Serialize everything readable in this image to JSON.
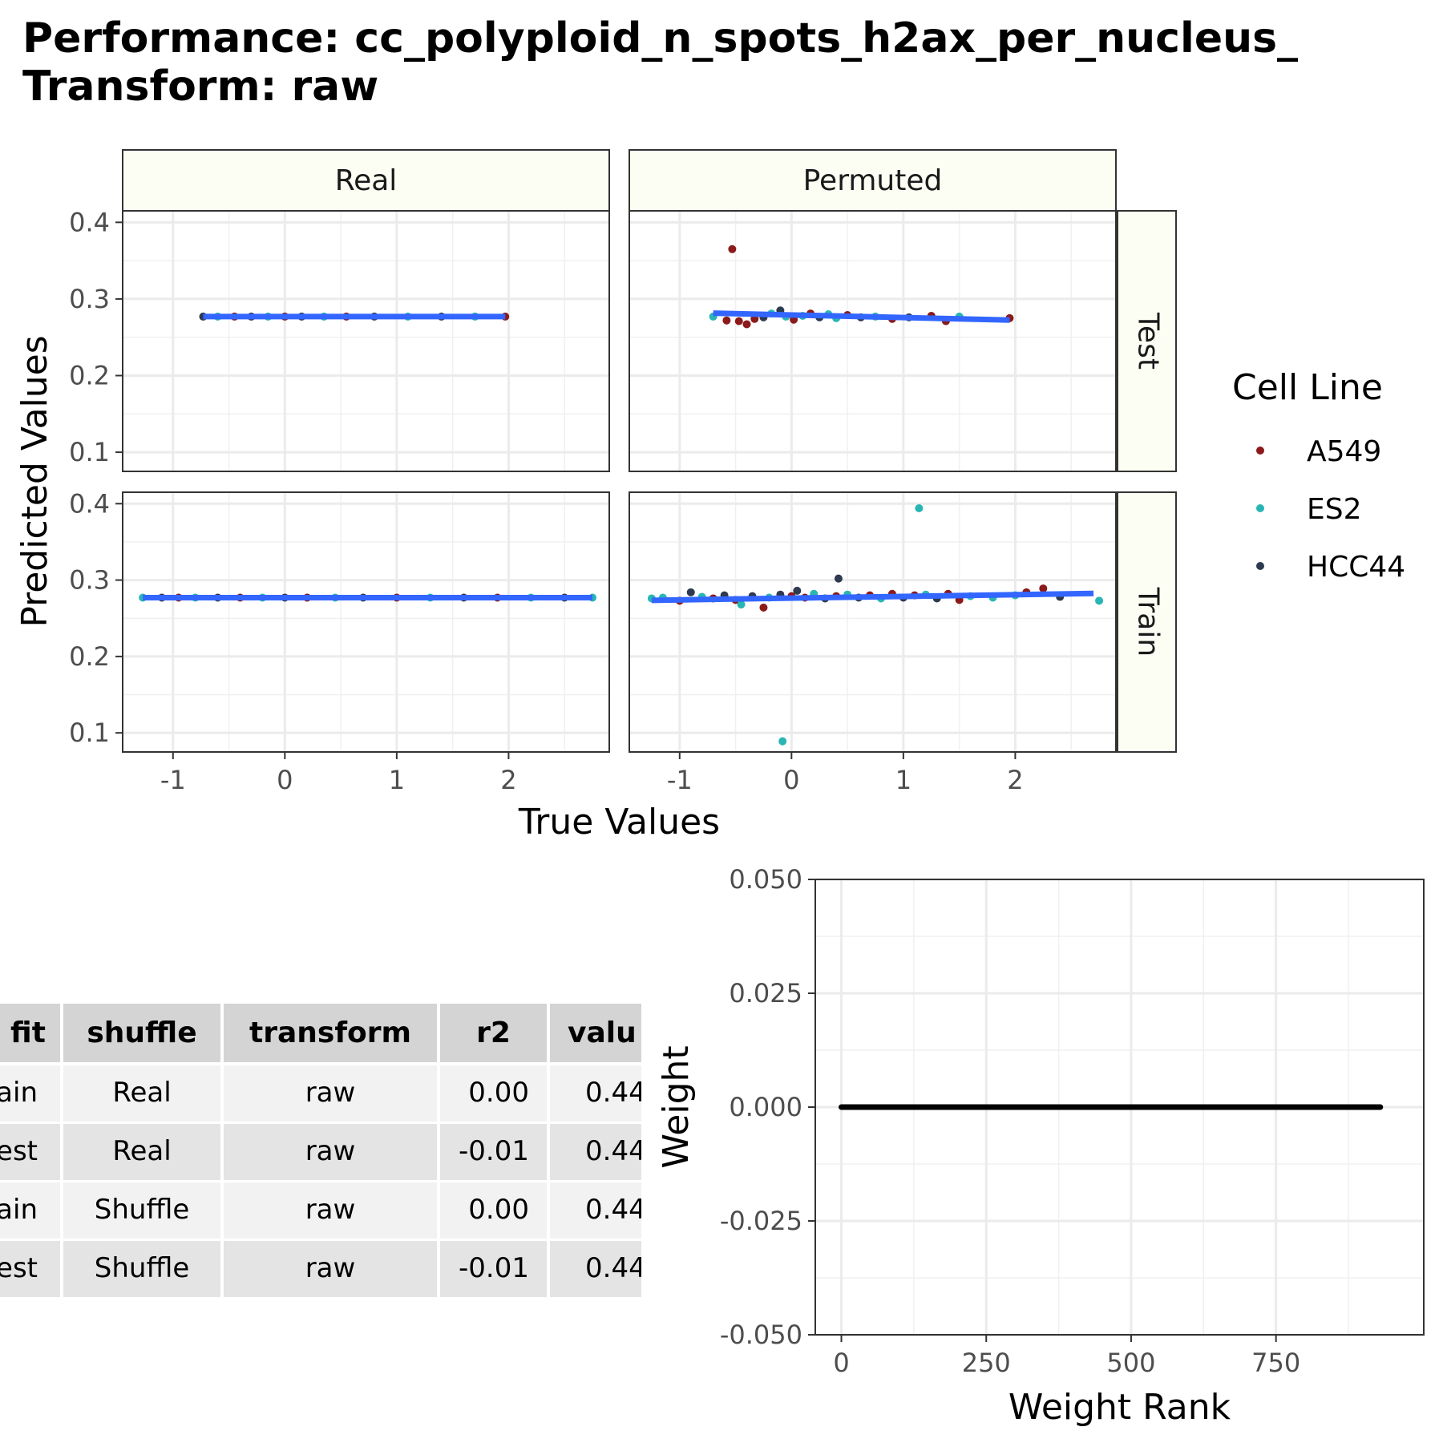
{
  "title": "Performance: cc_polyploid_n_spots_h2ax_per_nucleus_\nTransform: raw",
  "colors": {
    "A549": "#8b1a1a",
    "ES2": "#2ab5b5",
    "HCC44": "#2d3a4f",
    "fit_line": "#3366ff",
    "strip_fill": "#fcfdf3"
  },
  "chart_data": [
    {
      "type": "scatter",
      "facets": {
        "columns": [
          "Real",
          "Permuted"
        ],
        "rows": [
          "Test",
          "Train"
        ]
      },
      "xlabel": "True Values",
      "ylabel": "Predicted Values",
      "xlim": [
        -1.45,
        2.9
      ],
      "ylim": [
        0.075,
        0.415
      ],
      "xticks": [
        -1,
        0,
        1,
        2
      ],
      "xtick_labels": [
        "-1",
        "0",
        "1",
        "2"
      ],
      "yticks": [
        0.1,
        0.2,
        0.3,
        0.4
      ],
      "ytick_labels": [
        "0.1",
        "0.2",
        "0.3",
        "0.4"
      ],
      "legend": {
        "title": "Cell Line",
        "entries": [
          "A549",
          "ES2",
          "HCC44"
        ],
        "position": "right"
      },
      "grid": true,
      "panels": [
        {
          "row": "Test",
          "col": "Real",
          "fit": {
            "x0": -0.73,
            "y0": 0.277,
            "x1": 1.97,
            "y1": 0.277
          },
          "points": [
            {
              "x": -0.73,
              "y": 0.277,
              "g": "HCC44"
            },
            {
              "x": -0.6,
              "y": 0.277,
              "g": "ES2"
            },
            {
              "x": -0.45,
              "y": 0.277,
              "g": "A549"
            },
            {
              "x": -0.3,
              "y": 0.277,
              "g": "HCC44"
            },
            {
              "x": -0.15,
              "y": 0.277,
              "g": "ES2"
            },
            {
              "x": 0.0,
              "y": 0.277,
              "g": "A549"
            },
            {
              "x": 0.15,
              "y": 0.277,
              "g": "HCC44"
            },
            {
              "x": 0.35,
              "y": 0.277,
              "g": "ES2"
            },
            {
              "x": 0.55,
              "y": 0.277,
              "g": "A549"
            },
            {
              "x": 0.8,
              "y": 0.277,
              "g": "HCC44"
            },
            {
              "x": 1.1,
              "y": 0.277,
              "g": "ES2"
            },
            {
              "x": 1.4,
              "y": 0.277,
              "g": "HCC44"
            },
            {
              "x": 1.7,
              "y": 0.277,
              "g": "ES2"
            },
            {
              "x": 1.97,
              "y": 0.277,
              "g": "A549"
            }
          ]
        },
        {
          "row": "Test",
          "col": "Permuted",
          "fit": {
            "x0": -0.7,
            "y0": 0.2815,
            "x1": 1.95,
            "y1": 0.2725
          },
          "points": [
            {
              "x": -0.53,
              "y": 0.365,
              "g": "A549"
            },
            {
              "x": -0.7,
              "y": 0.277,
              "g": "ES2"
            },
            {
              "x": -0.58,
              "y": 0.272,
              "g": "A549"
            },
            {
              "x": -0.47,
              "y": 0.271,
              "g": "A549"
            },
            {
              "x": -0.4,
              "y": 0.267,
              "g": "A549"
            },
            {
              "x": -0.33,
              "y": 0.274,
              "g": "A549"
            },
            {
              "x": -0.25,
              "y": 0.276,
              "g": "HCC44"
            },
            {
              "x": -0.18,
              "y": 0.281,
              "g": "ES2"
            },
            {
              "x": -0.1,
              "y": 0.285,
              "g": "HCC44"
            },
            {
              "x": -0.05,
              "y": 0.277,
              "g": "ES2"
            },
            {
              "x": 0.02,
              "y": 0.273,
              "g": "A549"
            },
            {
              "x": 0.1,
              "y": 0.278,
              "g": "ES2"
            },
            {
              "x": 0.17,
              "y": 0.281,
              "g": "A549"
            },
            {
              "x": 0.25,
              "y": 0.276,
              "g": "HCC44"
            },
            {
              "x": 0.33,
              "y": 0.28,
              "g": "ES2"
            },
            {
              "x": 0.4,
              "y": 0.275,
              "g": "ES2"
            },
            {
              "x": 0.5,
              "y": 0.279,
              "g": "A549"
            },
            {
              "x": 0.62,
              "y": 0.276,
              "g": "HCC44"
            },
            {
              "x": 0.75,
              "y": 0.277,
              "g": "ES2"
            },
            {
              "x": 0.9,
              "y": 0.274,
              "g": "A549"
            },
            {
              "x": 1.05,
              "y": 0.276,
              "g": "HCC44"
            },
            {
              "x": 1.25,
              "y": 0.278,
              "g": "A549"
            },
            {
              "x": 1.38,
              "y": 0.271,
              "g": "A549"
            },
            {
              "x": 1.5,
              "y": 0.277,
              "g": "ES2"
            },
            {
              "x": 1.95,
              "y": 0.275,
              "g": "A549"
            }
          ]
        },
        {
          "row": "Train",
          "col": "Real",
          "fit": {
            "x0": -1.27,
            "y0": 0.277,
            "x1": 2.75,
            "y1": 0.277
          },
          "points": [
            {
              "x": -1.27,
              "y": 0.277,
              "g": "ES2"
            },
            {
              "x": -1.1,
              "y": 0.277,
              "g": "HCC44"
            },
            {
              "x": -0.95,
              "y": 0.277,
              "g": "A549"
            },
            {
              "x": -0.8,
              "y": 0.277,
              "g": "ES2"
            },
            {
              "x": -0.6,
              "y": 0.277,
              "g": "HCC44"
            },
            {
              "x": -0.4,
              "y": 0.277,
              "g": "A549"
            },
            {
              "x": -0.2,
              "y": 0.277,
              "g": "ES2"
            },
            {
              "x": 0.0,
              "y": 0.277,
              "g": "HCC44"
            },
            {
              "x": 0.2,
              "y": 0.277,
              "g": "A549"
            },
            {
              "x": 0.45,
              "y": 0.277,
              "g": "ES2"
            },
            {
              "x": 0.7,
              "y": 0.277,
              "g": "HCC44"
            },
            {
              "x": 1.0,
              "y": 0.277,
              "g": "A549"
            },
            {
              "x": 1.3,
              "y": 0.277,
              "g": "ES2"
            },
            {
              "x": 1.6,
              "y": 0.277,
              "g": "HCC44"
            },
            {
              "x": 1.9,
              "y": 0.277,
              "g": "A549"
            },
            {
              "x": 2.2,
              "y": 0.277,
              "g": "ES2"
            },
            {
              "x": 2.5,
              "y": 0.277,
              "g": "HCC44"
            },
            {
              "x": 2.75,
              "y": 0.277,
              "g": "ES2"
            }
          ]
        },
        {
          "row": "Train",
          "col": "Permuted",
          "fit": {
            "x0": -1.25,
            "y0": 0.2735,
            "x1": 2.7,
            "y1": 0.2825
          },
          "points": [
            {
              "x": 1.14,
              "y": 0.394,
              "g": "ES2"
            },
            {
              "x": -0.08,
              "y": 0.089,
              "g": "ES2"
            },
            {
              "x": 0.42,
              "y": 0.302,
              "g": "HCC44"
            },
            {
              "x": -1.25,
              "y": 0.276,
              "g": "ES2"
            },
            {
              "x": -1.15,
              "y": 0.277,
              "g": "ES2"
            },
            {
              "x": -1.0,
              "y": 0.273,
              "g": "A549"
            },
            {
              "x": -0.9,
              "y": 0.284,
              "g": "HCC44"
            },
            {
              "x": -0.8,
              "y": 0.278,
              "g": "ES2"
            },
            {
              "x": -0.7,
              "y": 0.276,
              "g": "A549"
            },
            {
              "x": -0.6,
              "y": 0.28,
              "g": "HCC44"
            },
            {
              "x": -0.5,
              "y": 0.274,
              "g": "A549"
            },
            {
              "x": -0.45,
              "y": 0.268,
              "g": "ES2"
            },
            {
              "x": -0.35,
              "y": 0.279,
              "g": "HCC44"
            },
            {
              "x": -0.25,
              "y": 0.264,
              "g": "A549"
            },
            {
              "x": -0.2,
              "y": 0.277,
              "g": "ES2"
            },
            {
              "x": -0.1,
              "y": 0.281,
              "g": "HCC44"
            },
            {
              "x": 0.0,
              "y": 0.279,
              "g": "A549"
            },
            {
              "x": 0.05,
              "y": 0.286,
              "g": "HCC44"
            },
            {
              "x": 0.12,
              "y": 0.277,
              "g": "A549"
            },
            {
              "x": 0.2,
              "y": 0.282,
              "g": "ES2"
            },
            {
              "x": 0.3,
              "y": 0.276,
              "g": "HCC44"
            },
            {
              "x": 0.4,
              "y": 0.279,
              "g": "A549"
            },
            {
              "x": 0.5,
              "y": 0.281,
              "g": "ES2"
            },
            {
              "x": 0.6,
              "y": 0.277,
              "g": "HCC44"
            },
            {
              "x": 0.7,
              "y": 0.28,
              "g": "A549"
            },
            {
              "x": 0.8,
              "y": 0.276,
              "g": "ES2"
            },
            {
              "x": 0.9,
              "y": 0.282,
              "g": "A549"
            },
            {
              "x": 1.0,
              "y": 0.277,
              "g": "HCC44"
            },
            {
              "x": 1.1,
              "y": 0.28,
              "g": "A549"
            },
            {
              "x": 1.2,
              "y": 0.281,
              "g": "ES2"
            },
            {
              "x": 1.3,
              "y": 0.276,
              "g": "HCC44"
            },
            {
              "x": 1.4,
              "y": 0.282,
              "g": "A549"
            },
            {
              "x": 1.5,
              "y": 0.274,
              "g": "A549"
            },
            {
              "x": 1.6,
              "y": 0.279,
              "g": "ES2"
            },
            {
              "x": 1.8,
              "y": 0.277,
              "g": "ES2"
            },
            {
              "x": 2.0,
              "y": 0.28,
              "g": "ES2"
            },
            {
              "x": 2.1,
              "y": 0.284,
              "g": "A549"
            },
            {
              "x": 2.25,
              "y": 0.289,
              "g": "A549"
            },
            {
              "x": 2.4,
              "y": 0.278,
              "g": "HCC44"
            },
            {
              "x": 2.75,
              "y": 0.273,
              "g": "ES2"
            }
          ]
        }
      ]
    },
    {
      "type": "line",
      "xlabel": "Weight Rank",
      "ylabel": "Weight",
      "xlim": [
        -45,
        1005
      ],
      "ylim": [
        -0.05,
        0.05
      ],
      "xticks": [
        0,
        250,
        500,
        750
      ],
      "xtick_labels": [
        "0",
        "250",
        "500",
        "750"
      ],
      "yticks": [
        0.05,
        0.025,
        0.0,
        -0.025,
        -0.05
      ],
      "ytick_labels": [
        "0.050",
        "0.025",
        "0.000",
        "-0.025",
        "-0.050"
      ],
      "grid": true,
      "series": [
        {
          "x": [
            0,
            930
          ],
          "y": [
            0,
            0
          ]
        }
      ]
    }
  ],
  "table": {
    "headers": [
      "fit",
      "shuffle",
      "transform",
      "r2",
      "valu"
    ],
    "rows": [
      [
        "rain",
        "Real",
        "raw",
        "0.00",
        "0.44"
      ],
      [
        "est",
        "Real",
        "raw",
        "-0.01",
        "0.44"
      ],
      [
        "rain",
        "Shuffle",
        "raw",
        "0.00",
        "0.44"
      ],
      [
        "est",
        "Shuffle",
        "raw",
        "-0.01",
        "0.44"
      ]
    ]
  }
}
